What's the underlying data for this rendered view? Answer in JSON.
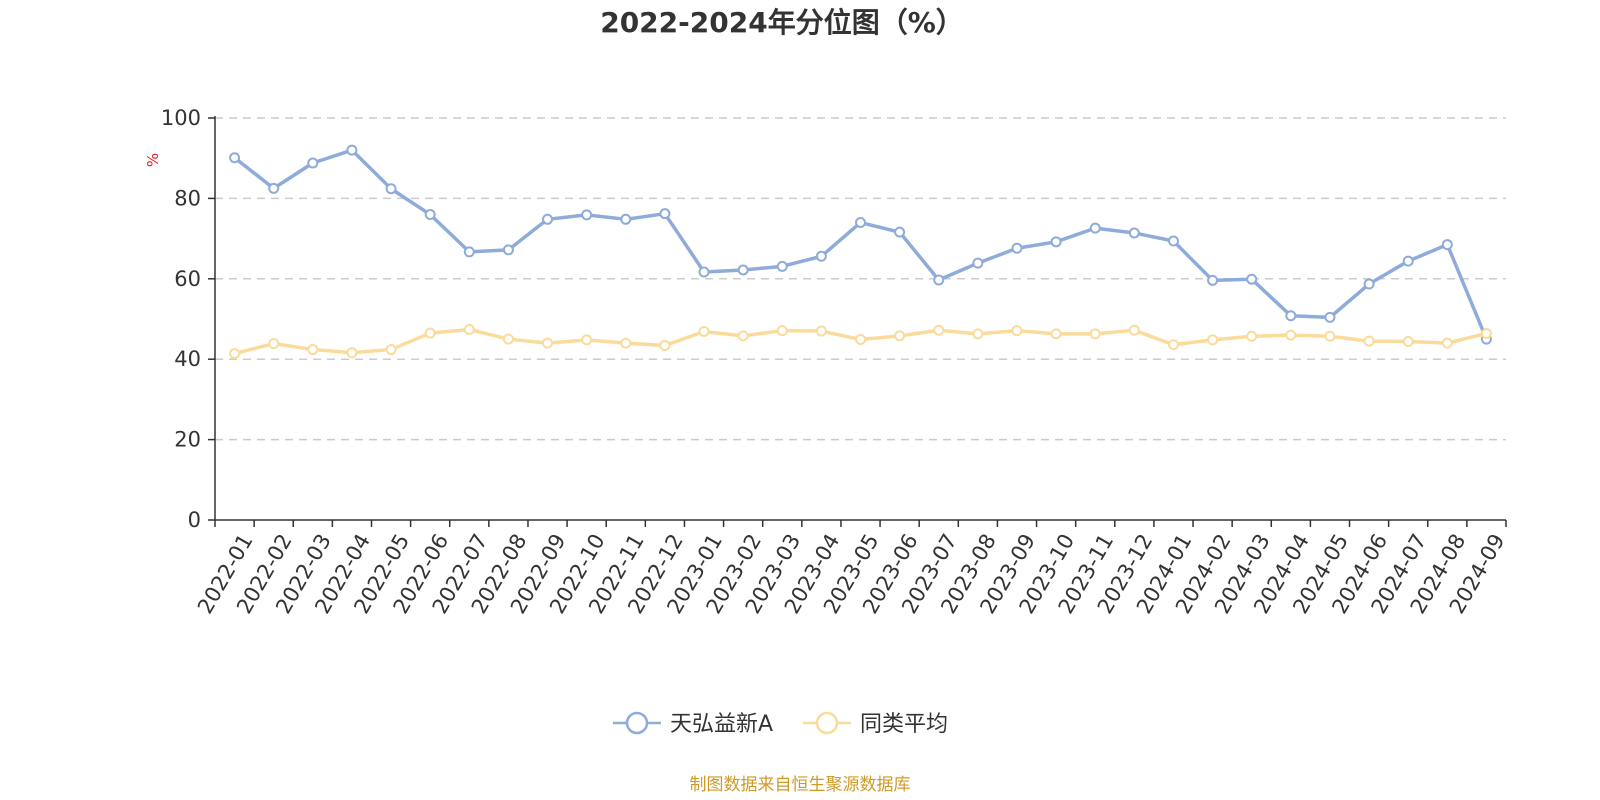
{
  "chart_data": {
    "type": "line",
    "title": "2022-2024年分位图（%）",
    "ylabel": "%",
    "ylim": [
      0,
      100
    ],
    "yticks": [
      0,
      20,
      40,
      60,
      80,
      100
    ],
    "grid": true,
    "legend_position": "bottom",
    "categories": [
      "2022-01",
      "2022-02",
      "2022-03",
      "2022-04",
      "2022-05",
      "2022-06",
      "2022-07",
      "2022-08",
      "2022-09",
      "2022-10",
      "2022-11",
      "2022-12",
      "2023-01",
      "2023-02",
      "2023-03",
      "2023-04",
      "2023-05",
      "2023-06",
      "2023-07",
      "2023-08",
      "2023-09",
      "2023-10",
      "2023-11",
      "2023-12",
      "2024-01",
      "2024-02",
      "2024-03",
      "2024-04",
      "2024-05",
      "2024-06",
      "2024-07",
      "2024-08",
      "2024-09"
    ],
    "series": [
      {
        "name": "天弘益新A",
        "color": "#8eabd9",
        "values": [
          90.1,
          82.5,
          88.8,
          92.0,
          82.4,
          76.0,
          66.7,
          67.2,
          74.8,
          75.9,
          74.8,
          76.2,
          61.7,
          62.2,
          63.1,
          65.6,
          74.0,
          71.6,
          59.7,
          63.9,
          67.6,
          69.2,
          72.6,
          71.4,
          69.4,
          59.6,
          59.9,
          50.8,
          50.4,
          58.7,
          64.4,
          68.5,
          45.0
        ]
      },
      {
        "name": "同类平均",
        "color": "#fbdb9b",
        "values": [
          41.4,
          43.9,
          42.4,
          41.6,
          42.4,
          46.5,
          47.4,
          45.0,
          44.0,
          44.8,
          44.0,
          43.4,
          46.9,
          45.8,
          47.1,
          47.0,
          44.9,
          45.8,
          47.2,
          46.3,
          47.1,
          46.3,
          46.3,
          47.2,
          43.6,
          44.8,
          45.7,
          46.0,
          45.7,
          44.5,
          44.4,
          44.0,
          46.4
        ]
      }
    ]
  },
  "footer": {
    "source": "制图数据来自恒生聚源数据库",
    "source_color": "#d09a26"
  },
  "colors": {
    "axis": "#333333",
    "grid": "#cccccc",
    "unit_label": "#e02020"
  }
}
